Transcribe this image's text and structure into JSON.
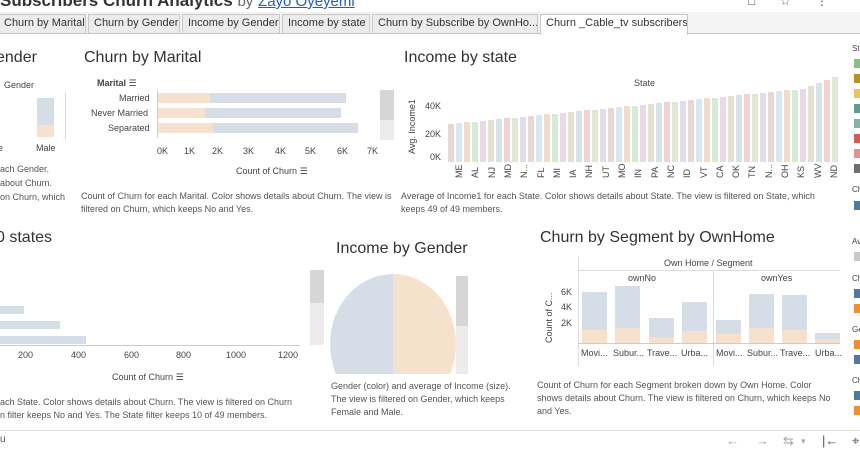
{
  "header": {
    "title": "Subscribers Churn Analytics",
    "by": "by",
    "author": "Zayo Oyeyemi"
  },
  "tabs": [
    {
      "label": "Churn by Marital"
    },
    {
      "label": "Churn by Gender"
    },
    {
      "label": "Income by Gender"
    },
    {
      "label": "Income by state"
    },
    {
      "label": "Churn by Subscribe by OwnHo..."
    },
    {
      "label": "Churn _Cable_tv subscribers"
    }
  ],
  "gender_panel": {
    "title": "ender",
    "col_header": "Gender",
    "male_label": "Male",
    "caption_lines": [
      "ach Gender.",
      "about Churn.",
      "on Churn, which"
    ]
  },
  "marital": {
    "title": "Churn by Marital",
    "row_header": "Marital",
    "axis_label": "Count of Churn",
    "ticks": [
      "0K",
      "1K",
      "2K",
      "3K",
      "4K",
      "5K",
      "6K",
      "7K"
    ],
    "caption": "Count of Churn for each Marital.  Color shows details about Churn. The view is filtered on Churn, which keeps No and Yes."
  },
  "income_state": {
    "title": "Income by state",
    "col_header": "State",
    "y_label": "Avg. Income1",
    "y_ticks": [
      "40K",
      "20K",
      "0K"
    ],
    "state_labels": [
      "ME",
      "AL",
      "NJ",
      "MD",
      "N...",
      "FL",
      "MI",
      "IA",
      "NH",
      "UT",
      "MO",
      "IN",
      "PA",
      "NC",
      "ID",
      "VT",
      "CA",
      "OK",
      "TN",
      "N...",
      "OH",
      "KS",
      "WV",
      "ND"
    ],
    "caption": "Average of Income1 for each State.  Color shows details about State. The view is filtered on State, which keeps 49 of 49 members."
  },
  "top_states": {
    "title": "0 states",
    "ticks": [
      "200",
      "400",
      "600",
      "800",
      "1000",
      "1200"
    ],
    "axis_label": "Count of Churn",
    "caption_lines": [
      "ach State.  Color shows details about Churn. The view is filtered on Churn",
      "n filter keeps No and Yes. The State filter keeps 10 of 49 members."
    ]
  },
  "income_gender": {
    "title": "Income by Gender",
    "caption": "Gender (color) and average of Income (size). The view is filtered on Gender, which keeps Female and Male."
  },
  "segment": {
    "title": "Churn by Segment by OwnHome",
    "header": "Own Home / Segment",
    "groups": [
      "ownNo",
      "ownYes"
    ],
    "y_label": "Count of C...",
    "y_ticks": [
      "6K",
      "4K",
      "2K"
    ],
    "x_labels": [
      "Movi...",
      "Subur...",
      "Trave...",
      "Urba...",
      "Movi...",
      "Subur...",
      "Trave...",
      "Urba..."
    ],
    "caption": "Count of Churn for each Segment broken down by Own Home.  Color shows details about Churn. The view is filtered on Churn, which keeps No and Yes."
  },
  "legend": {
    "items": [
      "St",
      "Ch",
      "Av",
      "Ch",
      "Ge",
      "Ch"
    ]
  },
  "footer": {
    "left_text": "u"
  },
  "colors": {
    "churn_no": "#d5dde6",
    "churn_yes": "#f6e1cc",
    "male": "#d5dde6",
    "female": "#f6e1cc"
  }
}
